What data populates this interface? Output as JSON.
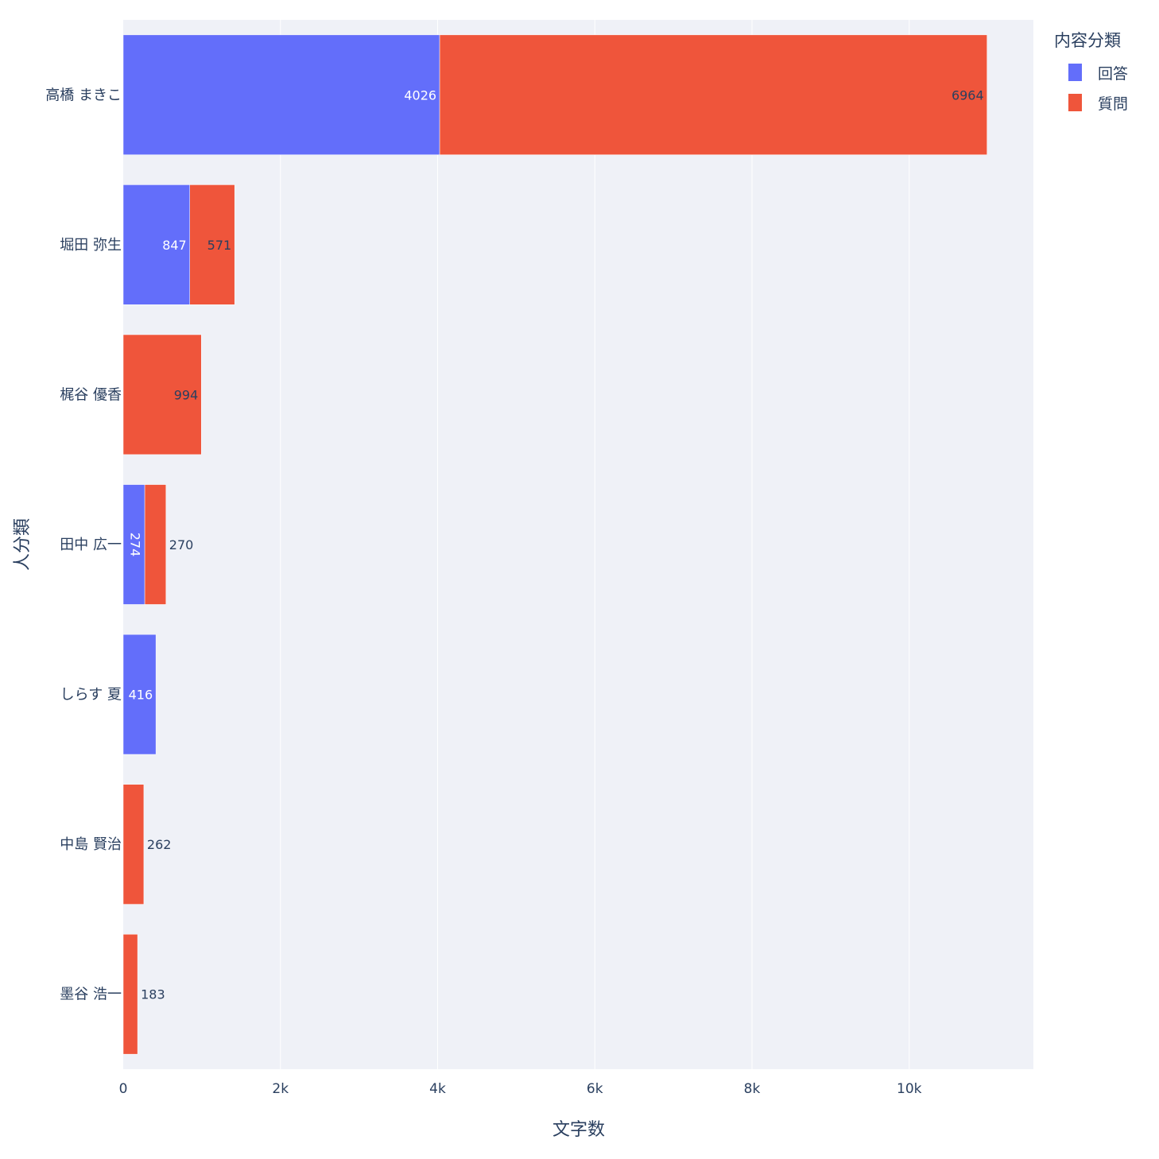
{
  "chart_data": {
    "type": "bar",
    "orientation": "horizontal",
    "barmode": "stack",
    "categories": [
      "高橋 まきこ",
      "堀田 弥生",
      "梶谷 優香",
      "田中 広一",
      "しらす 夏",
      "中島 賢治",
      "墨谷 浩一"
    ],
    "series": [
      {
        "name": "回答",
        "color": "#636efa",
        "values": [
          4026,
          847,
          0,
          274,
          416,
          0,
          0
        ]
      },
      {
        "name": "質問",
        "color": "#ef553b",
        "values": [
          6964,
          571,
          994,
          270,
          0,
          262,
          183
        ]
      }
    ],
    "xlabel": "文字数",
    "ylabel": "人分類",
    "legend_title": "内容分類",
    "legend_position": "top-right",
    "xlim": [
      0,
      11580
    ],
    "xticks": [
      0,
      2000,
      4000,
      6000,
      8000,
      10000
    ],
    "xtick_labels": [
      "0",
      "2k",
      "4k",
      "6k",
      "8k",
      "10k"
    ],
    "grid": true,
    "plot_bgcolor": "#e5ecf6"
  }
}
